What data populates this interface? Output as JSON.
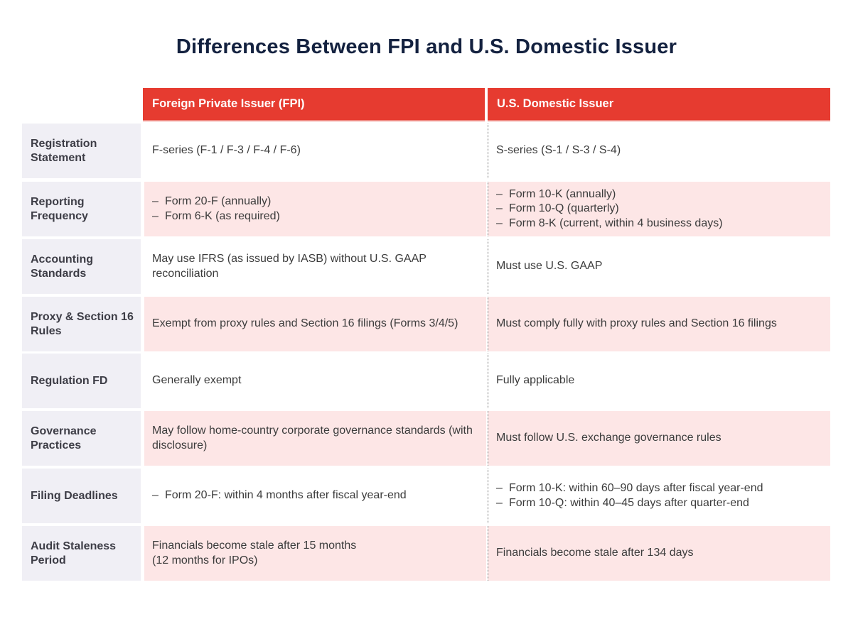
{
  "title": "Differences Between FPI and U.S. Domestic Issuer",
  "columns": [
    "Foreign Private Issuer (FPI)",
    "U.S. Domestic Issuer"
  ],
  "colors": {
    "header": "#e63b30",
    "title": "#13213f",
    "label_bg": "#f0eff5",
    "row_alt": "#fde6e6"
  },
  "rows": [
    {
      "label": "Registration Statement",
      "fpi": {
        "list": false,
        "lines": [
          "F-series (F-1 / F-3 / F-4 / F-6)"
        ]
      },
      "us": {
        "list": false,
        "lines": [
          "S-series (S-1 / S-3 / S-4)"
        ]
      }
    },
    {
      "label": "Reporting Frequency",
      "fpi": {
        "list": true,
        "lines": [
          "Form 20-F (annually)",
          "Form 6-K (as required)"
        ]
      },
      "us": {
        "list": true,
        "lines": [
          "Form 10-K (annually)",
          "Form 10-Q (quarterly)",
          "Form 8-K (current, within 4 business days)"
        ]
      }
    },
    {
      "label": "Accounting Standards",
      "fpi": {
        "list": false,
        "lines": [
          "May use IFRS (as issued by IASB) without U.S. GAAP reconciliation"
        ]
      },
      "us": {
        "list": false,
        "lines": [
          "Must use U.S. GAAP"
        ]
      }
    },
    {
      "label": "Proxy & Section 16 Rules",
      "fpi": {
        "list": false,
        "lines": [
          "Exempt from proxy rules and Section 16 filings (Forms 3/4/5)"
        ]
      },
      "us": {
        "list": false,
        "lines": [
          "Must comply fully with proxy rules and Section 16 filings"
        ]
      }
    },
    {
      "label": "Regulation FD",
      "fpi": {
        "list": false,
        "lines": [
          "Generally exempt"
        ]
      },
      "us": {
        "list": false,
        "lines": [
          "Fully applicable"
        ]
      }
    },
    {
      "label": "Governance Practices",
      "fpi": {
        "list": false,
        "lines": [
          "May follow home-country corporate governance standards (with disclosure)"
        ]
      },
      "us": {
        "list": false,
        "lines": [
          "Must follow U.S. exchange governance rules"
        ]
      }
    },
    {
      "label": "Filing Deadlines",
      "fpi": {
        "list": true,
        "lines": [
          "Form 20-F: within 4 months after fiscal year-end"
        ]
      },
      "us": {
        "list": true,
        "lines": [
          "Form 10-K: within 60–90 days after fiscal year-end",
          "Form 10-Q: within 40–45 days after quarter-end"
        ]
      }
    },
    {
      "label": "Audit Staleness Period",
      "fpi": {
        "list": false,
        "lines": [
          "Financials become stale after 15 months",
          "(12 months for IPOs)"
        ]
      },
      "us": {
        "list": false,
        "lines": [
          "Financials become stale after 134 days"
        ]
      }
    }
  ]
}
